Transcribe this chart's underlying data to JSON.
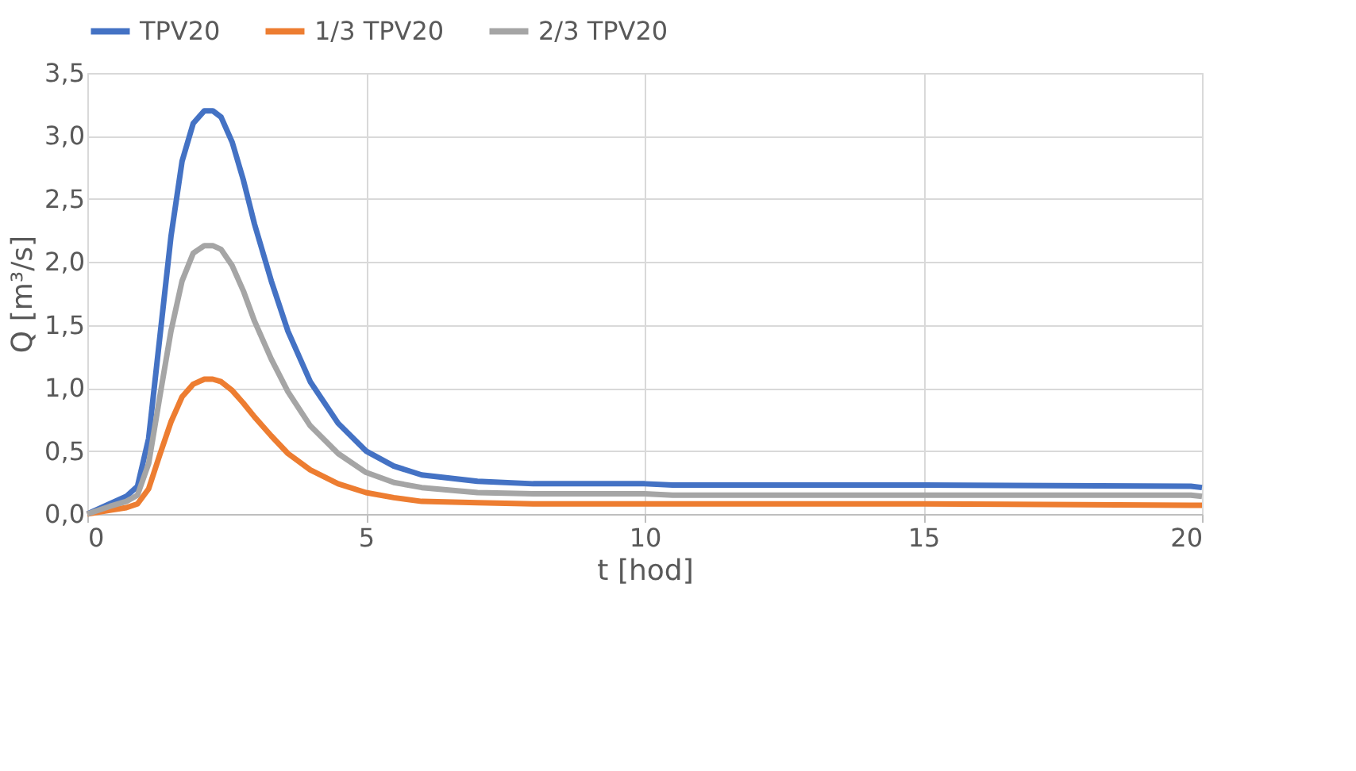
{
  "chart_data": {
    "type": "line",
    "xlabel": "t [hod]",
    "ylabel": "Q [m³/s]",
    "x": [
      0,
      0.4,
      0.7,
      0.9,
      1.1,
      1.3,
      1.5,
      1.7,
      1.9,
      2.1,
      2.25,
      2.4,
      2.6,
      2.8,
      3.0,
      3.3,
      3.6,
      4.0,
      4.5,
      5,
      5.5,
      6,
      7,
      8,
      10,
      10.5,
      15,
      19.8,
      20
    ],
    "series": [
      {
        "name": "TPV20",
        "color": "#4472c4",
        "values": [
          0,
          0.08,
          0.14,
          0.22,
          0.6,
          1.4,
          2.2,
          2.8,
          3.1,
          3.2,
          3.2,
          3.15,
          2.95,
          2.65,
          2.3,
          1.85,
          1.45,
          1.05,
          0.72,
          0.5,
          0.38,
          0.31,
          0.26,
          0.24,
          0.24,
          0.23,
          0.23,
          0.22,
          0.21
        ]
      },
      {
        "name": "1/3 TPV20",
        "color": "#ed7d31",
        "values": [
          0,
          0.03,
          0.05,
          0.08,
          0.2,
          0.47,
          0.73,
          0.93,
          1.03,
          1.07,
          1.07,
          1.05,
          0.98,
          0.88,
          0.77,
          0.62,
          0.48,
          0.35,
          0.24,
          0.17,
          0.13,
          0.1,
          0.09,
          0.08,
          0.08,
          0.08,
          0.08,
          0.07,
          0.07
        ]
      },
      {
        "name": "2/3 TPV20",
        "color": "#a5a5a5",
        "values": [
          0,
          0.06,
          0.1,
          0.15,
          0.4,
          0.93,
          1.45,
          1.85,
          2.07,
          2.13,
          2.13,
          2.1,
          1.97,
          1.77,
          1.53,
          1.23,
          0.97,
          0.7,
          0.48,
          0.33,
          0.25,
          0.21,
          0.17,
          0.16,
          0.16,
          0.15,
          0.15,
          0.15,
          0.14
        ]
      }
    ],
    "xlim": [
      0,
      20
    ],
    "xticks": [
      0,
      5,
      10,
      15,
      20
    ],
    "ylim": [
      0,
      3.5
    ],
    "yticks": [
      {
        "value": 0,
        "label": "0,0"
      },
      {
        "value": 0.5,
        "label": "0,5"
      },
      {
        "value": 1,
        "label": "1,0"
      },
      {
        "value": 1.5,
        "label": "1,5"
      },
      {
        "value": 2,
        "label": "2,0"
      },
      {
        "value": 2.5,
        "label": "2,5"
      },
      {
        "value": 3,
        "label": "3,0"
      },
      {
        "value": 3.5,
        "label": "3,5"
      }
    ],
    "grid": true,
    "legend": "top",
    "marker": "none",
    "line_style": "solid"
  }
}
